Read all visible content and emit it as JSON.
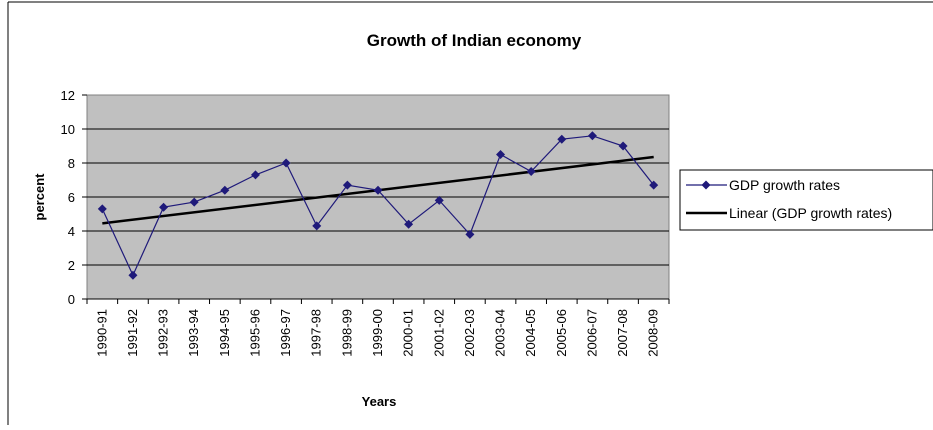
{
  "chart_data": {
    "type": "line",
    "title": "Growth of Indian economy",
    "xlabel": "Years",
    "ylabel": "percent",
    "ylim": [
      0,
      12
    ],
    "yticks": [
      0,
      2,
      4,
      6,
      8,
      10,
      12
    ],
    "grid": true,
    "legend_position": "right",
    "categories": [
      "1990-91",
      "1991-92",
      "1992-93",
      "1993-94",
      "1994-95",
      "1995-96",
      "1996-97",
      "1997-98",
      "1998-99",
      "1999-00",
      "2000-01",
      "2001-02",
      "2002-03",
      "2003-04",
      "2004-05",
      "2005-06",
      "2006-07",
      "2007-08",
      "2008-09"
    ],
    "series": [
      {
        "name": "GDP growth rates",
        "values": [
          5.3,
          1.4,
          5.4,
          5.7,
          6.4,
          7.3,
          8.0,
          4.3,
          6.7,
          6.4,
          4.4,
          5.8,
          3.8,
          8.5,
          7.5,
          9.4,
          9.6,
          9.0,
          6.7
        ],
        "color": "#1f1a7a",
        "marker": "diamond"
      }
    ],
    "trendline": {
      "name": "Linear (GDP growth rates)",
      "start": 4.45,
      "end": 8.35,
      "color": "#000000"
    },
    "plot_background": "#c0c0c0"
  }
}
